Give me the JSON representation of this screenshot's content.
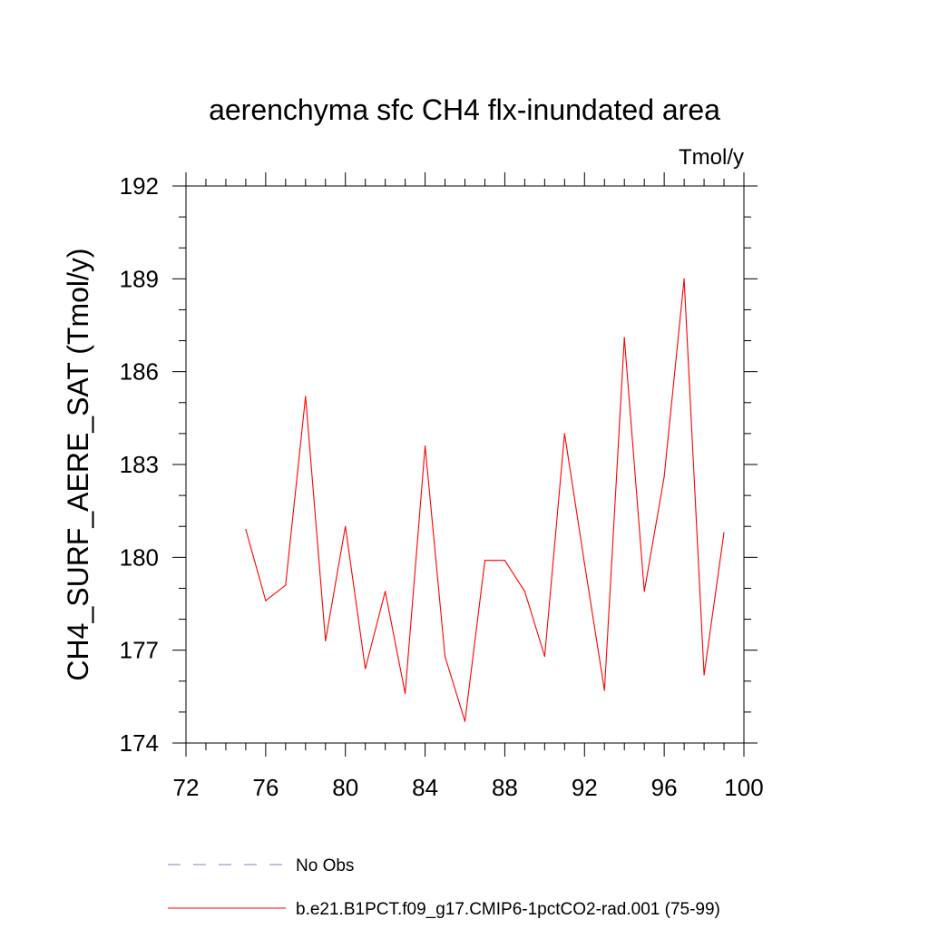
{
  "chart_data": {
    "type": "line",
    "title": "aerenchyma sfc CH4 flx-inundated area",
    "units_label": "Tmol/y",
    "xlabel": "",
    "ylabel": "CH4_SURF_AERE_SAT  (Tmol/y)",
    "xlim": [
      72,
      100
    ],
    "ylim": [
      174,
      192
    ],
    "x_ticks": [
      72,
      76,
      80,
      84,
      88,
      92,
      96,
      100
    ],
    "y_ticks": [
      174,
      177,
      180,
      183,
      186,
      189,
      192
    ],
    "x_minor_step": 1,
    "y_minor_step": 1,
    "grid": false,
    "legend_position": "bottom",
    "series": [
      {
        "name": "b.e21.B1PCT.f09_g17.CMIP6-1pctCO2-rad.001 (75-99)",
        "color": "#ff0000",
        "style": "solid",
        "x": [
          75,
          76,
          77,
          78,
          79,
          80,
          81,
          82,
          83,
          84,
          85,
          86,
          87,
          88,
          89,
          90,
          91,
          92,
          93,
          94,
          95,
          96,
          97,
          98,
          99
        ],
        "y": [
          180.9,
          178.6,
          179.1,
          185.2,
          177.3,
          181.0,
          176.4,
          178.9,
          175.6,
          183.6,
          176.8,
          174.7,
          179.9,
          179.9,
          178.9,
          176.8,
          184.0,
          179.8,
          175.7,
          187.1,
          178.9,
          182.6,
          189.0,
          176.2,
          180.8
        ]
      }
    ],
    "legend": [
      {
        "label": "No Obs",
        "color": "#8080c0",
        "style": "dashed"
      },
      {
        "label": "b.e21.B1PCT.f09_g17.CMIP6-1pctCO2-rad.001 (75-99)",
        "color": "#ff0000",
        "style": "solid"
      }
    ]
  }
}
